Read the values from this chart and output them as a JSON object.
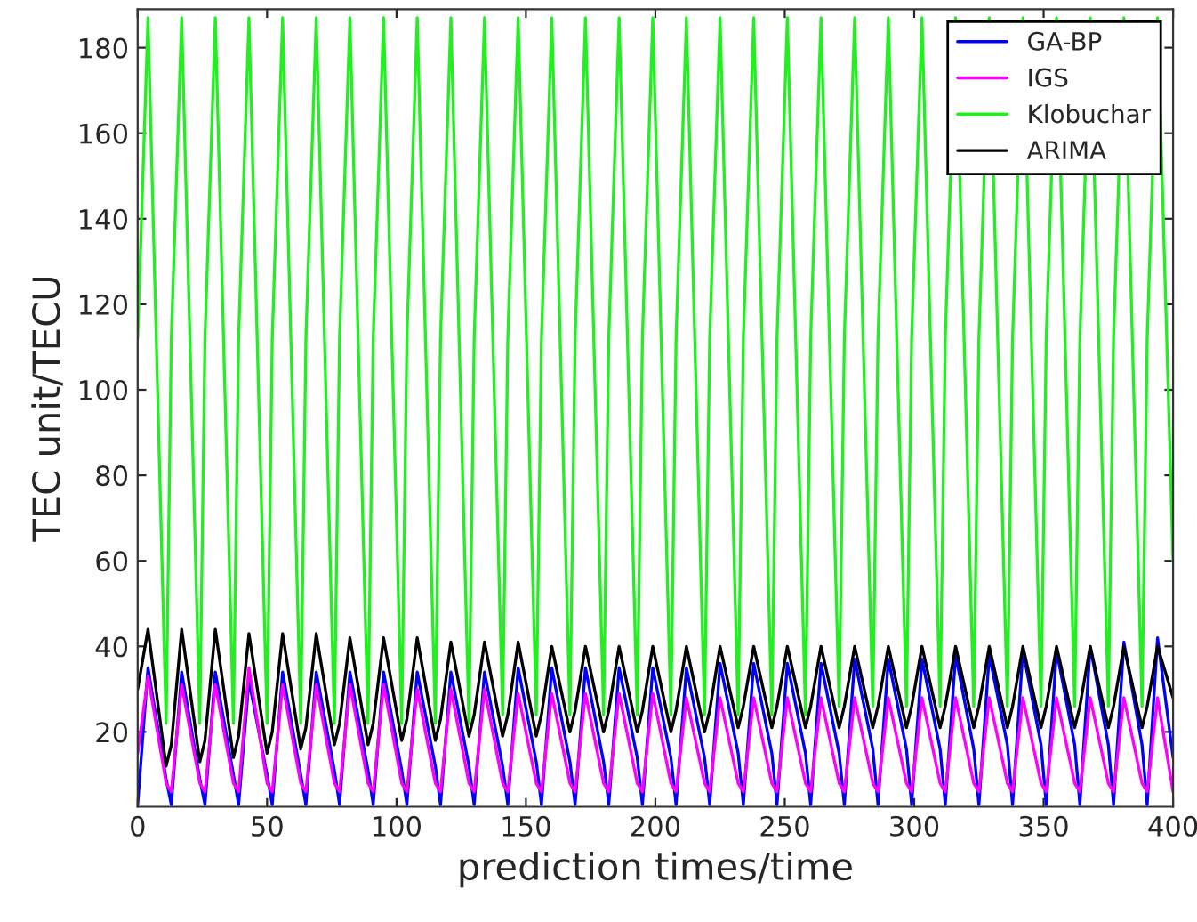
{
  "chart_data": {
    "type": "line",
    "xlabel": "prediction times/time",
    "ylabel": "TEC unit/TECU",
    "x": [
      0,
      4,
      11,
      13,
      17,
      24,
      26,
      30,
      37,
      39,
      43,
      50,
      52,
      56,
      63,
      65,
      69,
      76,
      78,
      82,
      89,
      91,
      95,
      102,
      104,
      108,
      115,
      117,
      121,
      128,
      130,
      134,
      141,
      143,
      147,
      154,
      156,
      160,
      167,
      169,
      173,
      180,
      182,
      186,
      193,
      195,
      199,
      206,
      208,
      212,
      219,
      221,
      225,
      232,
      234,
      238,
      245,
      247,
      251,
      258,
      260,
      264,
      271,
      273,
      277,
      284,
      286,
      290,
      297,
      299,
      303,
      310,
      312,
      316,
      323,
      325,
      329,
      336,
      338,
      342,
      349,
      351,
      355,
      362,
      364,
      368,
      375,
      377,
      381,
      388,
      390,
      394,
      400
    ],
    "xlim": [
      0,
      400
    ],
    "xticks": [
      0,
      50,
      100,
      150,
      200,
      250,
      300,
      350,
      400
    ],
    "ylim": [
      2.5,
      189
    ],
    "yticks": [
      20,
      40,
      60,
      80,
      100,
      120,
      140,
      160,
      180
    ],
    "legend": "top right",
    "grid": false,
    "line_style": "solid",
    "marker": "none",
    "series": [
      {
        "name": "GA-BP",
        "color": "#0000ff",
        "values": [
          3,
          35,
          9,
          3,
          34,
          9,
          3,
          34,
          10,
          3,
          32,
          10,
          3,
          34,
          10,
          3,
          34,
          11,
          3,
          34,
          11,
          3,
          34,
          11,
          3,
          34,
          12,
          3,
          34,
          12,
          3,
          34,
          12,
          3,
          35,
          13,
          3,
          35,
          13,
          3,
          35,
          13,
          3,
          35,
          14,
          3,
          35,
          14,
          3,
          35,
          14,
          3,
          36,
          15,
          3,
          36,
          15,
          3,
          36,
          15,
          3,
          36,
          15,
          3,
          37,
          16,
          3,
          37,
          16,
          3,
          37,
          16,
          3,
          38,
          16,
          3,
          38,
          17,
          3,
          39,
          17,
          3,
          39,
          17,
          3,
          40,
          17,
          3,
          41,
          17,
          3,
          42,
          14
        ]
      },
      {
        "name": "IGS",
        "color": "#ff00ff",
        "values": [
          15,
          33,
          8,
          6,
          31,
          8,
          6,
          31,
          8,
          6,
          35,
          8,
          6,
          31,
          8,
          6,
          31,
          8,
          6,
          31,
          8,
          6,
          31,
          8,
          6,
          30,
          8,
          6,
          30,
          8,
          6,
          30,
          8,
          6,
          29,
          8,
          6,
          29,
          8,
          6,
          29,
          8,
          6,
          29,
          8,
          6,
          29,
          8,
          6,
          28,
          8,
          6,
          28,
          8,
          6,
          28,
          8,
          6,
          28,
          8,
          6,
          28,
          8,
          6,
          28,
          8,
          6,
          28,
          8,
          6,
          28,
          8,
          6,
          28,
          8,
          6,
          28,
          8,
          6,
          28,
          8,
          6,
          28,
          8,
          6,
          28,
          8,
          6,
          28,
          8,
          6,
          28,
          6
        ]
      },
      {
        "name": "Klobuchar",
        "color": "#22ee22",
        "values": [
          112,
          187,
          22,
          112,
          187,
          22,
          112,
          187,
          22,
          112,
          187,
          22,
          112,
          187,
          22,
          112,
          187,
          22,
          112,
          187,
          22,
          112,
          187,
          22,
          112,
          187,
          22,
          112,
          187,
          22,
          112,
          187,
          24,
          112,
          187,
          24,
          112,
          187,
          24,
          112,
          187,
          24,
          112,
          187,
          24,
          112,
          187,
          24,
          112,
          187,
          24,
          112,
          187,
          24,
          112,
          187,
          24,
          112,
          187,
          24,
          112,
          187,
          26,
          112,
          187,
          26,
          112,
          187,
          26,
          112,
          187,
          26,
          112,
          187,
          26,
          112,
          187,
          26,
          112,
          187,
          26,
          112,
          187,
          26,
          112,
          187,
          26,
          112,
          187,
          26,
          112,
          187,
          60
        ]
      },
      {
        "name": "ARIMA",
        "color": "#000000",
        "values": [
          30,
          44,
          12,
          17,
          44,
          13,
          18,
          44,
          14,
          19,
          43,
          15,
          20,
          43,
          16,
          21,
          43,
          17,
          22,
          42,
          17,
          22,
          42,
          18,
          23,
          42,
          18,
          23,
          41,
          19,
          24,
          41,
          19,
          24,
          41,
          19,
          24,
          40,
          20,
          25,
          40,
          20,
          25,
          40,
          20,
          25,
          40,
          20,
          25,
          40,
          20,
          25,
          40,
          21,
          26,
          40,
          21,
          26,
          40,
          21,
          26,
          40,
          21,
          26,
          40,
          21,
          26,
          40,
          21,
          26,
          40,
          21,
          26,
          40,
          21,
          26,
          40,
          21,
          26,
          40,
          21,
          26,
          40,
          21,
          26,
          40,
          21,
          26,
          40,
          21,
          26,
          40,
          28
        ]
      }
    ]
  }
}
